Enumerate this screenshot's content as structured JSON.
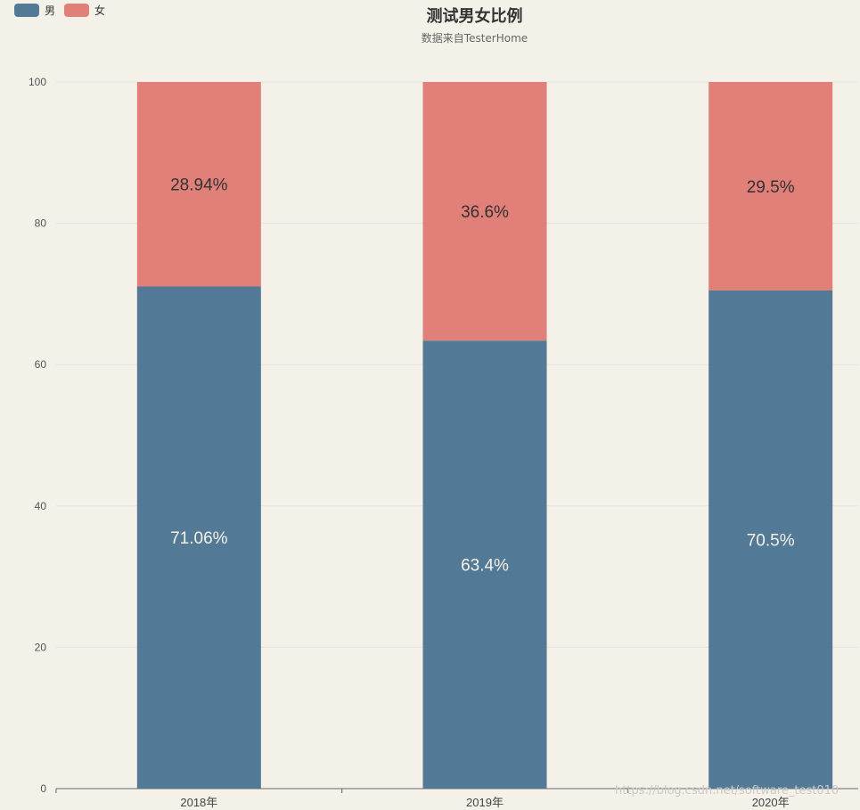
{
  "chart_data": {
    "type": "bar",
    "stacked": true,
    "title": "测试男女比例",
    "subtitle": "数据来自TesterHome",
    "categories": [
      "2018年",
      "2019年",
      "2020年"
    ],
    "series": [
      {
        "name": "男",
        "color": "#527a96",
        "values": [
          71.06,
          63.4,
          70.5
        ],
        "labels": [
          "71.06%",
          "63.4%",
          "70.5%"
        ]
      },
      {
        "name": "女",
        "color": "#e17f79",
        "values": [
          28.94,
          36.6,
          29.5
        ],
        "labels": [
          "28.94%",
          "36.6%",
          "29.5%"
        ]
      }
    ],
    "ylim": [
      0,
      100
    ],
    "yticks": [
      0,
      20,
      40,
      60,
      80,
      100
    ],
    "xlabel": "",
    "ylabel": "",
    "legend_position": "top-left",
    "grid": true
  },
  "watermark": "https://blog.csdn.net/software_test010"
}
